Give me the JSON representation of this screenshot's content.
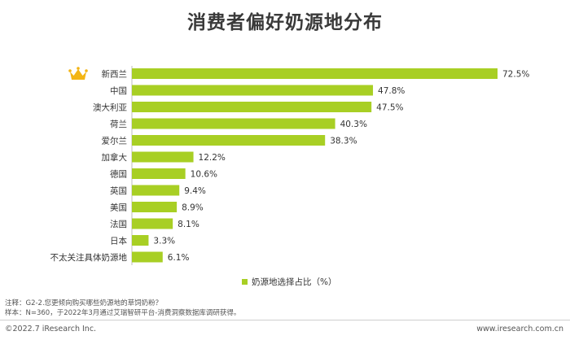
{
  "title": "消费者偏好奶源地分布",
  "chart_data": {
    "type": "bar",
    "orientation": "horizontal",
    "categories": [
      "新西兰",
      "中国",
      "澳大利亚",
      "荷兰",
      "爱尔兰",
      "加拿大",
      "德国",
      "英国",
      "美国",
      "法国",
      "日本",
      "不太关注具体奶源地"
    ],
    "values": [
      72.5,
      47.8,
      47.5,
      40.3,
      38.3,
      12.2,
      10.6,
      9.4,
      8.9,
      8.1,
      3.3,
      6.1
    ],
    "value_labels": [
      "72.5%",
      "47.8%",
      "47.5%",
      "40.3%",
      "38.3%",
      "12.2%",
      "10.6%",
      "9.4%",
      "8.9%",
      "8.1%",
      "3.3%",
      "6.1%"
    ],
    "series": [
      {
        "name": "奶源地选择占比（%）",
        "values": [
          72.5,
          47.8,
          47.5,
          40.3,
          38.3,
          12.2,
          10.6,
          9.4,
          8.9,
          8.1,
          3.3,
          6.1
        ]
      }
    ],
    "xlim": [
      0,
      72.5
    ],
    "grid": false,
    "legend_position": "bottom",
    "bar_color": "#a8cf24",
    "highlight_icon": "crown-icon",
    "highlight_color": "#f3b514"
  },
  "legend_label": "奶源地选择占比（%）",
  "notes": {
    "note": "注释：G2-2.您更倾向购买哪些奶源地的草饲奶粉？",
    "sample": "样本：N=360，于2022年3月通过艾瑞智研平台-消费洞察数据库调研获得。"
  },
  "footer": {
    "copyright": "©2022.7 iResearch Inc.",
    "website": "www.iresearch.com.cn"
  }
}
